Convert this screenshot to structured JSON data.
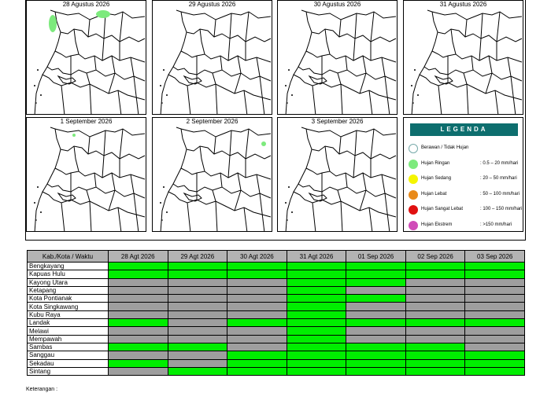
{
  "colors": {
    "rain": "#00ee00",
    "none": "#9e9e9e",
    "legend_header": "#0d6e6e",
    "berawan": "#ffffff",
    "ringan": "#7dea7d",
    "sedang": "#f5f500",
    "lebat": "#e88a1a",
    "sangat_lebat": "#e01010",
    "ekstrem": "#d04cb8"
  },
  "maps": [
    {
      "date": "28 Agustus 2026"
    },
    {
      "date": "29 Agustus 2026"
    },
    {
      "date": "30 Agustus 2026"
    },
    {
      "date": "31 Agustus 2026"
    },
    {
      "date": "1 September 2026"
    },
    {
      "date": "2 September 2026"
    },
    {
      "date": "3 September 2026"
    }
  ],
  "legend": {
    "title": "LEGENDA",
    "items": [
      {
        "label": "Berawan / Tidak Hujan",
        "range": ""
      },
      {
        "label": "Hujan Ringan",
        "range": ": 0.5 – 20 mm/hari"
      },
      {
        "label": "Hujan Sedang",
        "range": ": 20 – 50 mm/hari"
      },
      {
        "label": "Hujan Lebat",
        "range": ": 50 – 100 mm/hari"
      },
      {
        "label": "Hujan Sangat Lebat",
        "range": ": 100 – 150 mm/hari"
      },
      {
        "label": "Hujan Ekstrem",
        "range": ": >150 mm/hari"
      }
    ]
  },
  "table": {
    "header": "Kab./Kota / Waktu",
    "dates": [
      "28 Agt 2026",
      "29 Agt 2026",
      "30 Agt 2026",
      "31 Agt 2026",
      "01 Sep 2026",
      "02 Sep 2026",
      "03 Sep 2026"
    ],
    "rows": [
      {
        "name": "Bengkayang",
        "cells": [
          1,
          1,
          1,
          1,
          1,
          1,
          1
        ]
      },
      {
        "name": "Kapuas Hulu",
        "cells": [
          1,
          1,
          1,
          1,
          1,
          1,
          1
        ]
      },
      {
        "name": "Kayong Utara",
        "cells": [
          0,
          0,
          0,
          1,
          1,
          0,
          0
        ]
      },
      {
        "name": "Ketapang",
        "cells": [
          0,
          0,
          0,
          1,
          0,
          0,
          0
        ]
      },
      {
        "name": "Kota Pontianak",
        "cells": [
          0,
          0,
          0,
          1,
          1,
          0,
          0
        ]
      },
      {
        "name": "Kota Singkawang",
        "cells": [
          0,
          0,
          0,
          1,
          0,
          0,
          0
        ]
      },
      {
        "name": "Kubu Raya",
        "cells": [
          0,
          0,
          0,
          1,
          0,
          0,
          0
        ]
      },
      {
        "name": "Landak",
        "cells": [
          1,
          0,
          1,
          1,
          1,
          1,
          1
        ]
      },
      {
        "name": "Melawi",
        "cells": [
          0,
          0,
          0,
          1,
          0,
          0,
          0
        ]
      },
      {
        "name": "Mempawah",
        "cells": [
          0,
          0,
          0,
          1,
          0,
          0,
          0
        ]
      },
      {
        "name": "Sambas",
        "cells": [
          1,
          1,
          0,
          1,
          1,
          1,
          0
        ]
      },
      {
        "name": "Sanggau",
        "cells": [
          0,
          0,
          1,
          1,
          1,
          1,
          1
        ]
      },
      {
        "name": "Sekadau",
        "cells": [
          1,
          0,
          1,
          1,
          1,
          1,
          1
        ]
      },
      {
        "name": "Sintang",
        "cells": [
          0,
          1,
          1,
          1,
          1,
          1,
          1
        ]
      }
    ]
  },
  "footnote": "Keterangan :"
}
